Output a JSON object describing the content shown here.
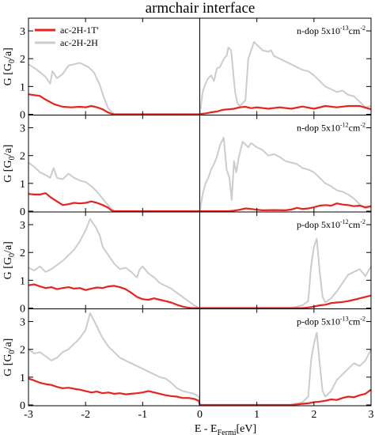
{
  "chart_data": {
    "type": "line",
    "title": "armchair interface",
    "xlabel": {
      "main": "E - E",
      "sub": "Fermi",
      "unit": "[eV]"
    },
    "xlim": [
      -3,
      3
    ],
    "xticks": [
      -3,
      -2,
      -1,
      0,
      1,
      2,
      3
    ],
    "ylim": [
      0,
      3.4
    ],
    "yticks": [
      0,
      1,
      2,
      3
    ],
    "grid": false,
    "legend": {
      "placement": "top-left",
      "entries": [
        {
          "label": "ac-2H-1T'",
          "color": "#e8231d"
        },
        {
          "label": "ac-2H-2H",
          "color": "#cccccc"
        }
      ]
    },
    "panels": [
      {
        "ylabel": {
          "main": "G [G",
          "sub": "0",
          "tail": "/a]"
        },
        "annotation": {
          "text": "n-dop 5x10",
          "exp": "-13",
          "unit": "cm",
          "unit_exp": "-2"
        },
        "series": [
          {
            "name": "ac-2H-1T'",
            "color": "#e8231d",
            "x": [
              -3,
              -2.8,
              -2.7,
              -2.55,
              -2.4,
              -2.25,
              -2.1,
              -2.0,
              -1.9,
              -1.8,
              -1.7,
              -1.62,
              -1.55,
              -1.5,
              -1.0,
              -0.5,
              -0.02,
              0.0,
              0.05,
              0.1,
              0.2,
              0.3,
              0.4,
              0.5,
              0.6,
              0.7,
              0.8,
              0.9,
              1.0,
              1.2,
              1.4,
              1.6,
              1.8,
              2.0,
              2.2,
              2.4,
              2.6,
              2.8,
              3.0
            ],
            "y": [
              0.72,
              0.66,
              0.53,
              0.36,
              0.27,
              0.25,
              0.27,
              0.25,
              0.3,
              0.25,
              0.18,
              0.08,
              0.02,
              0,
              0,
              0,
              0,
              0.01,
              0.02,
              0.03,
              0.07,
              0.1,
              0.16,
              0.18,
              0.2,
              0.25,
              0.27,
              0.22,
              0.25,
              0.2,
              0.25,
              0.2,
              0.28,
              0.2,
              0.3,
              0.25,
              0.3,
              0.3,
              0.18
            ]
          },
          {
            "name": "ac-2H-2H",
            "color": "#cccccc",
            "x": [
              -3,
              -2.85,
              -2.7,
              -2.62,
              -2.58,
              -2.5,
              -2.4,
              -2.3,
              -2.2,
              -2.1,
              -1.95,
              -1.85,
              -1.75,
              -1.68,
              -1.6,
              -1.5,
              -1.0,
              -0.5,
              0.0,
              0.02,
              0.05,
              0.1,
              0.15,
              0.2,
              0.25,
              0.3,
              0.35,
              0.4,
              0.44,
              0.47,
              0.5,
              0.55,
              0.6,
              0.62,
              0.66,
              0.7,
              0.8,
              0.85,
              0.95,
              1.1,
              1.2,
              1.25,
              1.3,
              1.4,
              1.5,
              1.6,
              1.7,
              1.8,
              1.9,
              2.0,
              2.1,
              2.2,
              2.3,
              2.4,
              2.5,
              2.6,
              2.7,
              2.8,
              2.9,
              3.0
            ],
            "y": [
              1.8,
              1.6,
              1.35,
              1.1,
              1.55,
              1.3,
              1.45,
              1.75,
              1.8,
              1.85,
              1.7,
              1.5,
              1.05,
              0.6,
              0.2,
              0,
              0,
              0,
              0,
              0.3,
              0.8,
              1.1,
              1.3,
              1.4,
              1.2,
              1.65,
              1.7,
              1.9,
              2.05,
              2.1,
              2.4,
              2.3,
              1.2,
              0.8,
              0.4,
              0.3,
              0.5,
              2.0,
              2.6,
              2.3,
              2.25,
              2.3,
              2.1,
              2.0,
              1.9,
              1.8,
              1.7,
              1.6,
              1.55,
              1.4,
              1.2,
              1.0,
              0.9,
              0.8,
              0.85,
              0.7,
              0.65,
              0.45,
              0.25,
              0.3
            ]
          }
        ]
      },
      {
        "ylabel": {
          "main": "G [G",
          "sub": "0",
          "tail": "/a]"
        },
        "annotation": {
          "text": "n-dop 5x10",
          "exp": "-12",
          "unit": "cm",
          "unit_exp": "-2"
        },
        "series": [
          {
            "name": "ac-2H-1T'",
            "color": "#e8231d",
            "x": [
              -3,
              -2.9,
              -2.8,
              -2.7,
              -2.6,
              -2.5,
              -2.4,
              -2.3,
              -2.2,
              -2.1,
              -2.0,
              -1.9,
              -1.8,
              -1.7,
              -1.6,
              -1.55,
              -1.5,
              -0.5,
              0.0,
              0.5,
              0.6,
              0.7,
              0.8,
              0.9,
              1.0,
              1.1,
              1.3,
              1.5,
              1.6,
              1.7,
              1.8,
              1.9,
              2.0,
              2.1,
              2.2,
              2.3,
              2.4,
              2.5,
              2.6,
              2.7,
              2.8,
              2.9,
              3.0
            ],
            "y": [
              0.62,
              0.6,
              0.6,
              0.65,
              0.48,
              0.35,
              0.22,
              0.25,
              0.3,
              0.28,
              0.3,
              0.35,
              0.3,
              0.22,
              0.12,
              0.03,
              0,
              0,
              0,
              0,
              0.02,
              0.05,
              0.1,
              0.08,
              0.05,
              0.03,
              0.04,
              0.03,
              0.06,
              0.12,
              0.08,
              0.1,
              0.14,
              0.2,
              0.22,
              0.2,
              0.28,
              0.24,
              0.22,
              0.18,
              0.2,
              0.14,
              0.18
            ]
          },
          {
            "name": "ac-2H-2H",
            "color": "#cccccc",
            "x": [
              -3,
              -2.9,
              -2.8,
              -2.7,
              -2.62,
              -2.56,
              -2.5,
              -2.4,
              -2.3,
              -2.2,
              -2.1,
              -2.0,
              -1.9,
              -1.8,
              -1.7,
              -1.6,
              -1.5,
              -1.0,
              -0.5,
              0.0,
              0.05,
              0.1,
              0.15,
              0.2,
              0.25,
              0.3,
              0.36,
              0.42,
              0.47,
              0.52,
              0.56,
              0.6,
              0.64,
              0.68,
              0.75,
              0.85,
              0.9,
              1.0,
              1.1,
              1.2,
              1.3,
              1.4,
              1.5,
              1.6,
              1.7,
              1.8,
              1.9,
              2.0,
              2.1,
              2.2,
              2.3,
              2.4,
              2.5,
              2.6,
              2.7,
              2.8,
              2.9,
              3.0
            ],
            "y": [
              1.75,
              1.6,
              1.4,
              1.3,
              1.2,
              1.55,
              1.2,
              1.15,
              1.35,
              1.2,
              1.1,
              1.05,
              0.9,
              0.7,
              0.45,
              0.2,
              0,
              0,
              0,
              0,
              0.6,
              1.0,
              1.2,
              1.5,
              1.7,
              1.95,
              2.4,
              2.65,
              1.5,
              1.2,
              0.4,
              1.8,
              1.4,
              1.9,
              2.5,
              2.3,
              2.45,
              2.3,
              2.2,
              2.0,
              2.05,
              1.95,
              1.8,
              1.75,
              1.7,
              1.55,
              1.5,
              1.4,
              1.2,
              1.0,
              0.9,
              0.75,
              0.7,
              0.6,
              0.45,
              0.25,
              0.1,
              0.15
            ]
          }
        ]
      },
      {
        "ylabel": {
          "main": "G [G",
          "sub": "0",
          "tail": "/a]"
        },
        "annotation": {
          "text": "p-dop 5x10",
          "exp": "-12",
          "unit": "cm",
          "unit_exp": "-2"
        },
        "series": [
          {
            "name": "ac-2H-1T'",
            "color": "#e8231d",
            "x": [
              -3,
              -2.9,
              -2.8,
              -2.7,
              -2.6,
              -2.5,
              -2.4,
              -2.3,
              -2.2,
              -2.1,
              -2.0,
              -1.9,
              -1.8,
              -1.7,
              -1.6,
              -1.5,
              -1.4,
              -1.3,
              -1.2,
              -1.1,
              -1.0,
              -0.9,
              -0.8,
              -0.7,
              -0.6,
              -0.5,
              -0.4,
              -0.3,
              -0.22,
              -0.15,
              0.0,
              1.0,
              1.8,
              1.9,
              2.0,
              2.1,
              2.2,
              2.3,
              2.4,
              2.5,
              2.6,
              2.7,
              2.8,
              2.9,
              3.0
            ],
            "y": [
              0.82,
              0.85,
              0.78,
              0.72,
              0.75,
              0.68,
              0.72,
              0.75,
              0.7,
              0.72,
              0.65,
              0.7,
              0.74,
              0.72,
              0.78,
              0.8,
              0.75,
              0.68,
              0.55,
              0.4,
              0.32,
              0.3,
              0.35,
              0.3,
              0.25,
              0.2,
              0.12,
              0.05,
              0.02,
              0,
              0,
              0,
              0,
              0.02,
              0.05,
              0.1,
              0.12,
              0.18,
              0.2,
              0.22,
              0.25,
              0.3,
              0.35,
              0.4,
              0.45
            ]
          },
          {
            "name": "ac-2H-2H",
            "color": "#cccccc",
            "x": [
              -3,
              -2.9,
              -2.8,
              -2.7,
              -2.6,
              -2.5,
              -2.4,
              -2.3,
              -2.2,
              -2.1,
              -2.0,
              -1.92,
              -1.82,
              -1.75,
              -1.7,
              -1.6,
              -1.5,
              -1.4,
              -1.3,
              -1.2,
              -1.1,
              -1.05,
              -1.0,
              -0.9,
              -0.8,
              -0.7,
              -0.6,
              -0.5,
              -0.4,
              -0.3,
              -0.2,
              -0.1,
              0.0,
              1.0,
              1.6,
              1.7,
              1.8,
              1.9,
              1.95,
              2.0,
              2.05,
              2.1,
              2.15,
              2.2,
              2.3,
              2.4,
              2.5,
              2.6,
              2.7,
              2.8,
              2.9,
              3.0
            ],
            "y": [
              1.45,
              1.35,
              1.5,
              1.3,
              1.4,
              1.55,
              1.7,
              1.9,
              2.1,
              2.4,
              2.8,
              3.2,
              2.9,
              2.6,
              2.2,
              1.9,
              1.6,
              1.4,
              1.45,
              1.3,
              1.1,
              1.4,
              1.5,
              1.25,
              1.1,
              0.9,
              0.8,
              0.7,
              0.55,
              0.4,
              0.25,
              0.1,
              0,
              0,
              0,
              0.05,
              0.1,
              0.25,
              1.5,
              2.2,
              2.5,
              1.3,
              0.4,
              0.2,
              0.35,
              0.6,
              0.9,
              1.2,
              1.3,
              1.4,
              1.15,
              1.5
            ]
          }
        ]
      },
      {
        "ylabel": {
          "main": "G [G",
          "sub": "0",
          "tail": "/a]"
        },
        "annotation": {
          "text": "p-dop 5x10",
          "exp": "-13",
          "unit": "cm",
          "unit_exp": "-2"
        },
        "series": [
          {
            "name": "ac-2H-1T'",
            "color": "#e8231d",
            "x": [
              -3,
              -2.9,
              -2.8,
              -2.7,
              -2.6,
              -2.5,
              -2.4,
              -2.3,
              -2.2,
              -2.1,
              -2.0,
              -1.9,
              -1.8,
              -1.7,
              -1.6,
              -1.5,
              -1.4,
              -1.3,
              -1.2,
              -1.1,
              -1.0,
              -0.9,
              -0.8,
              -0.7,
              -0.6,
              -0.5,
              -0.4,
              -0.3,
              -0.2,
              -0.1,
              -0.02,
              0.0,
              1.0,
              1.6,
              1.7,
              1.8,
              1.9,
              2.0,
              2.1,
              2.2,
              2.3,
              2.4,
              2.5,
              2.6,
              2.7,
              2.8,
              2.9,
              3.0
            ],
            "y": [
              0.95,
              0.88,
              0.8,
              0.75,
              0.72,
              0.65,
              0.6,
              0.62,
              0.58,
              0.55,
              0.5,
              0.45,
              0.48,
              0.42,
              0.45,
              0.4,
              0.42,
              0.38,
              0.4,
              0.42,
              0.45,
              0.5,
              0.45,
              0.4,
              0.35,
              0.32,
              0.3,
              0.25,
              0.25,
              0.22,
              0.15,
              0,
              0,
              0,
              0.02,
              0.04,
              0.06,
              0.1,
              0.12,
              0.15,
              0.2,
              0.18,
              0.25,
              0.3,
              0.28,
              0.35,
              0.4,
              0.55
            ]
          },
          {
            "name": "ac-2H-2H",
            "color": "#cccccc",
            "x": [
              -3,
              -2.9,
              -2.8,
              -2.7,
              -2.6,
              -2.5,
              -2.4,
              -2.3,
              -2.2,
              -2.1,
              -2.0,
              -1.92,
              -1.82,
              -1.75,
              -1.7,
              -1.6,
              -1.5,
              -1.4,
              -1.3,
              -1.2,
              -1.1,
              -1.0,
              -0.9,
              -0.8,
              -0.7,
              -0.6,
              -0.5,
              -0.4,
              -0.3,
              -0.2,
              -0.1,
              -0.02,
              0.0,
              1.0,
              1.6,
              1.7,
              1.8,
              1.9,
              1.95,
              2.0,
              2.05,
              2.1,
              2.15,
              2.2,
              2.3,
              2.4,
              2.5,
              2.6,
              2.7,
              2.8,
              2.9,
              3.0
            ],
            "y": [
              2.0,
              1.85,
              1.9,
              1.75,
              1.6,
              1.7,
              1.9,
              2.0,
              2.2,
              2.4,
              2.7,
              3.3,
              2.9,
              2.6,
              2.4,
              2.1,
              1.9,
              1.7,
              1.6,
              1.5,
              1.4,
              1.3,
              1.2,
              1.1,
              1.0,
              0.95,
              0.8,
              0.6,
              0.5,
              0.45,
              0.4,
              0.3,
              0,
              0,
              0,
              0.05,
              0.1,
              0.3,
              1.6,
              2.2,
              2.6,
              1.5,
              0.5,
              0.3,
              0.5,
              0.9,
              1.1,
              1.3,
              1.5,
              1.4,
              1.6,
              2.0
            ]
          }
        ]
      }
    ]
  }
}
